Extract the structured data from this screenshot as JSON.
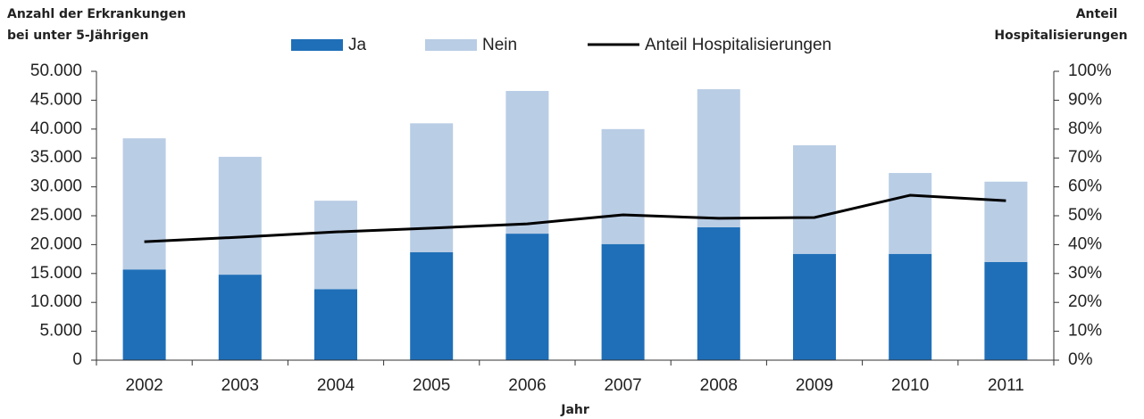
{
  "chart_data": {
    "type": "bar",
    "stacked": true,
    "y_label": [
      "Anzahl der Erkrankungen",
      "bei unter 5-Jährigen"
    ],
    "y2_label": [
      "Anteil",
      "Hospitalisierungen"
    ],
    "x_label": "Jahr",
    "categories": [
      "2002",
      "2003",
      "2004",
      "2005",
      "2006",
      "2007",
      "2008",
      "2009",
      "2010",
      "2011"
    ],
    "series": [
      {
        "name": "Ja",
        "color": "#1f6fb8",
        "values": [
          15700,
          14800,
          12300,
          18700,
          21900,
          20100,
          23000,
          18400,
          18400,
          17000
        ]
      },
      {
        "name": "Nein",
        "color": "#b9cde5",
        "values": [
          22700,
          20400,
          15300,
          22300,
          24700,
          19900,
          23900,
          18800,
          14000,
          13900
        ]
      },
      {
        "name": "Anteil Hospitalisierungen",
        "color": "#000000",
        "type": "line",
        "axis": "y2",
        "values": [
          41,
          42.6,
          44.4,
          45.7,
          47.2,
          50.3,
          49.1,
          49.4,
          57.1,
          55.2
        ]
      }
    ],
    "ylim": [
      0,
      50000
    ],
    "yticks": [
      0,
      {
        "value": 5000,
        "label": "5.000"
      },
      {
        "value": 10000,
        "label": "10.000"
      },
      {
        "value": 15000,
        "label": "15.000"
      },
      {
        "value": 20000,
        "label": "20.000"
      },
      {
        "value": 25000,
        "label": "25.000"
      },
      {
        "value": 30000,
        "label": "30.000"
      },
      {
        "value": 35000,
        "label": "35.000"
      },
      {
        "value": 40000,
        "label": "40.000"
      },
      {
        "value": 45000,
        "label": "45.000"
      },
      {
        "value": 50000,
        "label": "50.000"
      }
    ],
    "y2lim": [
      0,
      100
    ],
    "y2ticks": [
      {
        "value": 0,
        "label": "0%"
      },
      {
        "value": 10,
        "label": "10%"
      },
      {
        "value": 20,
        "label": "20%"
      },
      {
        "value": 30,
        "label": "30%"
      },
      {
        "value": 40,
        "label": "40%"
      },
      {
        "value": 50,
        "label": "50%"
      },
      {
        "value": 60,
        "label": "60%"
      },
      {
        "value": 70,
        "label": "70%"
      },
      {
        "value": 80,
        "label": "80%"
      },
      {
        "value": 90,
        "label": "90%"
      },
      {
        "value": 100,
        "label": "100%"
      }
    ],
    "grid": false
  }
}
